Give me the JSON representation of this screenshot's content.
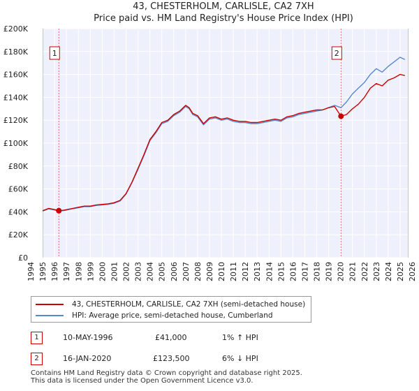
{
  "chart_data": {
    "type": "line",
    "title": "43, CHESTERHOLM, CARLISLE, CA2 7XH",
    "subtitle": "Price paid vs. HM Land Registry's House Price Index (HPI)",
    "xlim": [
      1994,
      2026
    ],
    "ylim": [
      0,
      200000
    ],
    "x_ticks": [
      "1994",
      "1995",
      "1996",
      "1997",
      "1998",
      "1999",
      "2000",
      "2001",
      "2002",
      "2003",
      "2004",
      "2005",
      "2006",
      "2007",
      "2008",
      "2009",
      "2010",
      "2011",
      "2012",
      "2013",
      "2014",
      "2015",
      "2016",
      "2017",
      "2018",
      "2019",
      "2020",
      "2021",
      "2022",
      "2023",
      "2024",
      "2025",
      "2026"
    ],
    "y_ticks": [
      {
        "value": 0,
        "label": "£0"
      },
      {
        "value": 20000,
        "label": "£20K"
      },
      {
        "value": 40000,
        "label": "£40K"
      },
      {
        "value": 60000,
        "label": "£60K"
      },
      {
        "value": 80000,
        "label": "£80K"
      },
      {
        "value": 100000,
        "label": "£100K"
      },
      {
        "value": 120000,
        "label": "£120K"
      },
      {
        "value": 140000,
        "label": "£140K"
      },
      {
        "value": 160000,
        "label": "£160K"
      },
      {
        "value": 180000,
        "label": "£180K"
      },
      {
        "value": 200000,
        "label": "£200K"
      }
    ],
    "grid": true,
    "series": [
      {
        "name": "43, CHESTERHOLM, CARLISLE, CA2 7XH (semi-detached house)",
        "color": "#cc0000",
        "x": [
          1995.0,
          1995.5,
          1996.0,
          1996.36,
          1996.8,
          1997.5,
          1998.0,
          1998.5,
          1999.0,
          1999.5,
          2000.0,
          2000.5,
          2001.0,
          2001.5,
          2002.0,
          2002.5,
          2003.0,
          2003.5,
          2004.0,
          2004.5,
          2005.0,
          2005.5,
          2006.0,
          2006.5,
          2007.0,
          2007.3,
          2007.6,
          2008.0,
          2008.5,
          2009.0,
          2009.5,
          2010.0,
          2010.5,
          2011.0,
          2011.5,
          2012.0,
          2012.5,
          2013.0,
          2013.5,
          2014.0,
          2014.5,
          2015.0,
          2015.5,
          2016.0,
          2016.5,
          2017.0,
          2017.5,
          2018.0,
          2018.5,
          2019.0,
          2019.5,
          2020.04,
          2020.5,
          2021.0,
          2021.5,
          2022.0,
          2022.5,
          2023.0,
          2023.5,
          2024.0,
          2024.5,
          2025.0,
          2025.4
        ],
        "values": [
          41000,
          43000,
          42000,
          41000,
          41500,
          43000,
          44000,
          45000,
          45000,
          46000,
          46500,
          47000,
          48000,
          50000,
          56000,
          66000,
          78000,
          90000,
          103000,
          110000,
          118000,
          120000,
          125000,
          128000,
          133000,
          131000,
          126000,
          124000,
          117000,
          122000,
          123000,
          121000,
          122000,
          120000,
          119000,
          119000,
          118000,
          118000,
          119000,
          120000,
          121000,
          120000,
          123000,
          124000,
          126000,
          127000,
          128000,
          129000,
          129000,
          131000,
          132000,
          123500,
          125000,
          130000,
          134000,
          140000,
          148000,
          152000,
          150000,
          155000,
          157000,
          160000,
          159000
        ]
      },
      {
        "name": "HPI: Average price, semi-detached house, Cumberland",
        "color": "#5588cc",
        "x": [
          1995.0,
          1995.5,
          1996.0,
          1996.36,
          1996.8,
          1997.5,
          1998.0,
          1998.5,
          1999.0,
          1999.5,
          2000.0,
          2000.5,
          2001.0,
          2001.5,
          2002.0,
          2002.5,
          2003.0,
          2003.5,
          2004.0,
          2004.5,
          2005.0,
          2005.5,
          2006.0,
          2006.5,
          2007.0,
          2007.3,
          2007.6,
          2008.0,
          2008.5,
          2009.0,
          2009.5,
          2010.0,
          2010.5,
          2011.0,
          2011.5,
          2012.0,
          2012.5,
          2013.0,
          2013.5,
          2014.0,
          2014.5,
          2015.0,
          2015.5,
          2016.0,
          2016.5,
          2017.0,
          2017.5,
          2018.0,
          2018.5,
          2019.0,
          2019.5,
          2020.04,
          2020.5,
          2021.0,
          2021.5,
          2022.0,
          2022.5,
          2023.0,
          2023.5,
          2024.0,
          2024.5,
          2025.0,
          2025.4
        ],
        "values": [
          40600,
          42600,
          41600,
          40600,
          41100,
          42600,
          43600,
          44600,
          44600,
          45600,
          46000,
          46500,
          47500,
          49500,
          55500,
          65500,
          77000,
          89000,
          102000,
          109000,
          117000,
          119000,
          124000,
          127000,
          132000,
          130000,
          125000,
          123000,
          116000,
          121000,
          122000,
          120000,
          121000,
          119000,
          118000,
          118000,
          117000,
          117000,
          118000,
          119000,
          120000,
          119000,
          122000,
          123000,
          125000,
          126000,
          127000,
          128000,
          129000,
          131000,
          133000,
          131000,
          136000,
          143000,
          148000,
          153000,
          160000,
          165000,
          162000,
          167000,
          171000,
          175000,
          173000
        ]
      }
    ],
    "markers": [
      {
        "label": "1",
        "x": 1996.36,
        "y": 41000
      },
      {
        "label": "2",
        "x": 2020.04,
        "y": 123500
      }
    ]
  },
  "legend": {
    "items": [
      {
        "label": "43, CHESTERHOLM, CARLISLE, CA2 7XH (semi-detached house)",
        "color": "#cc0000"
      },
      {
        "label": "HPI: Average price, semi-detached house, Cumberland",
        "color": "#5588cc"
      }
    ]
  },
  "transactions": [
    {
      "badge": "1",
      "date": "10-MAY-1996",
      "price": "£41,000",
      "hpi": "1% ↑ HPI"
    },
    {
      "badge": "2",
      "date": "16-JAN-2020",
      "price": "£123,500",
      "hpi": "6% ↓ HPI"
    }
  ],
  "footer": {
    "line1": "Contains HM Land Registry data © Crown copyright and database right 2025.",
    "line2": "This data is licensed under the Open Government Licence v3.0."
  }
}
